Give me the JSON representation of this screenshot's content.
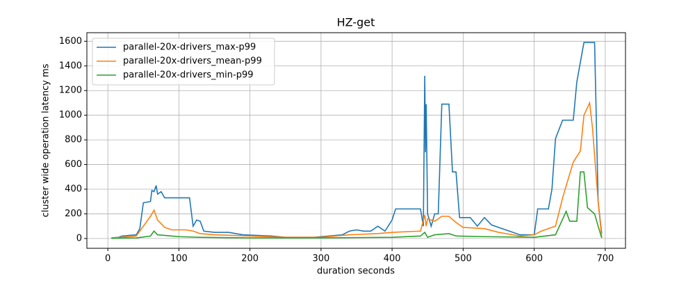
{
  "chart_data": {
    "type": "line",
    "title": "HZ-get",
    "xlabel": "duration seconds",
    "ylabel": "cluster wide operation latency ms",
    "xlim": [
      -29.5,
      728.5
    ],
    "ylim": [
      -79.5,
      1669.5
    ],
    "xticks": [
      0,
      100,
      200,
      300,
      400,
      500,
      600,
      700
    ],
    "yticks": [
      0,
      200,
      400,
      600,
      800,
      1000,
      1200,
      1400,
      1600
    ],
    "grid": true,
    "legend": "upper left",
    "series": [
      {
        "name": "parallel-20x-drivers_max-p99",
        "color": "#1f77b4",
        "x": [
          5,
          15,
          20,
          30,
          40,
          45,
          50,
          60,
          62,
          65,
          68,
          70,
          75,
          80,
          90,
          100,
          110,
          115,
          120,
          125,
          130,
          135,
          150,
          170,
          190,
          210,
          230,
          250,
          270,
          290,
          310,
          330,
          340,
          350,
          360,
          370,
          380,
          390,
          400,
          405,
          420,
          440,
          444,
          446,
          447,
          448,
          450,
          455,
          460,
          465,
          470,
          480,
          485,
          490,
          495,
          510,
          520,
          530,
          540,
          550,
          560,
          580,
          600,
          605,
          620,
          625,
          630,
          640,
          655,
          660,
          665,
          670,
          685,
          690,
          695
        ],
        "values": [
          5,
          10,
          20,
          25,
          30,
          80,
          290,
          300,
          390,
          380,
          430,
          360,
          380,
          330,
          330,
          330,
          330,
          330,
          100,
          150,
          140,
          60,
          50,
          50,
          30,
          25,
          20,
          10,
          10,
          10,
          20,
          30,
          60,
          70,
          60,
          60,
          100,
          60,
          150,
          240,
          240,
          240,
          100,
          1320,
          700,
          1090,
          200,
          100,
          200,
          200,
          1090,
          1090,
          540,
          540,
          170,
          170,
          100,
          170,
          110,
          90,
          70,
          30,
          30,
          240,
          240,
          400,
          810,
          960,
          960,
          1270,
          1430,
          1590,
          1590,
          300,
          40
        ]
      },
      {
        "name": "parallel-20x-drivers_mean-p99",
        "color": "#ff7f0e",
        "x": [
          5,
          20,
          40,
          50,
          60,
          65,
          70,
          80,
          90,
          110,
          120,
          130,
          150,
          200,
          250,
          300,
          340,
          380,
          400,
          440,
          446,
          448,
          450,
          460,
          470,
          480,
          490,
          500,
          530,
          550,
          580,
          600,
          610,
          630,
          640,
          655,
          665,
          670,
          678,
          682,
          690,
          695
        ],
        "values": [
          5,
          10,
          20,
          100,
          180,
          230,
          150,
          90,
          70,
          70,
          60,
          40,
          30,
          20,
          10,
          10,
          30,
          40,
          50,
          60,
          190,
          100,
          160,
          140,
          180,
          180,
          130,
          90,
          80,
          50,
          20,
          30,
          60,
          100,
          330,
          620,
          710,
          1000,
          1100,
          900,
          300,
          10
        ]
      },
      {
        "name": "parallel-20x-drivers_min-p99",
        "color": "#2ca02c",
        "x": [
          5,
          40,
          60,
          65,
          70,
          100,
          130,
          200,
          300,
          400,
          440,
          446,
          450,
          460,
          480,
          490,
          530,
          600,
          630,
          645,
          650,
          660,
          665,
          670,
          675,
          685,
          690,
          695
        ],
        "values": [
          2,
          5,
          20,
          60,
          30,
          15,
          10,
          5,
          5,
          10,
          20,
          50,
          10,
          30,
          40,
          20,
          15,
          10,
          30,
          220,
          140,
          140,
          540,
          540,
          250,
          200,
          100,
          5
        ]
      }
    ]
  }
}
